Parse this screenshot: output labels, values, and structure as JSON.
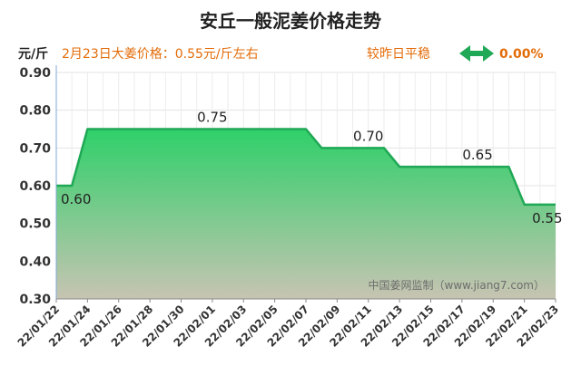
{
  "title": "安丘一般泥姜价格走势",
  "unit_label": "元/斤",
  "price_note": "2月23日大姜价格：0.55元/斤左右",
  "trend_label": "较昨日平稳",
  "change_value": "0.00%",
  "watermark": "中国姜网监制（www.jiang7.com）",
  "colors": {
    "title": "#222222",
    "accent_orange": "#e36c09",
    "line": "#1fa855",
    "arrow": "#1fa855",
    "fill_top": "#2fd06a",
    "fill_bottom": "#c7c4b2"
  },
  "chart_data": {
    "type": "area",
    "ylim": [
      0.3,
      0.9
    ],
    "yticks": [
      "0.30",
      "0.40",
      "0.50",
      "0.60",
      "0.70",
      "0.80",
      "0.90"
    ],
    "xtick_labels": [
      "22/01/22",
      "22/01/24",
      "22/01/26",
      "22/01/28",
      "22/01/30",
      "22/02/01",
      "22/02/03",
      "22/02/05",
      "22/02/07",
      "22/02/09",
      "22/02/11",
      "22/02/13",
      "22/02/15",
      "22/02/17",
      "22/02/19",
      "22/02/21",
      "22/02/23"
    ],
    "x": [
      "22/01/22",
      "22/01/23",
      "22/01/24",
      "22/01/25",
      "22/01/26",
      "22/01/27",
      "22/01/28",
      "22/01/29",
      "22/01/30",
      "22/01/31",
      "22/02/01",
      "22/02/02",
      "22/02/03",
      "22/02/04",
      "22/02/05",
      "22/02/06",
      "22/02/07",
      "22/02/08",
      "22/02/09",
      "22/02/10",
      "22/02/11",
      "22/02/12",
      "22/02/13",
      "22/02/14",
      "22/02/15",
      "22/02/16",
      "22/02/17",
      "22/02/18",
      "22/02/19",
      "22/02/20",
      "22/02/21",
      "22/02/22",
      "22/02/23"
    ],
    "values": [
      0.6,
      0.6,
      0.75,
      0.75,
      0.75,
      0.75,
      0.75,
      0.75,
      0.75,
      0.75,
      0.75,
      0.75,
      0.75,
      0.75,
      0.75,
      0.75,
      0.75,
      0.7,
      0.7,
      0.7,
      0.7,
      0.7,
      0.65,
      0.65,
      0.65,
      0.65,
      0.65,
      0.65,
      0.65,
      0.65,
      0.55,
      0.55,
      0.55
    ],
    "data_labels": [
      {
        "x": "22/01/22",
        "text": "0.60"
      },
      {
        "x": "22/02/01",
        "text": "0.75"
      },
      {
        "x": "22/02/11",
        "text": "0.70"
      },
      {
        "x": "22/02/18",
        "text": "0.65"
      },
      {
        "x": "22/02/22",
        "text": "0.55"
      }
    ],
    "grid": true
  }
}
